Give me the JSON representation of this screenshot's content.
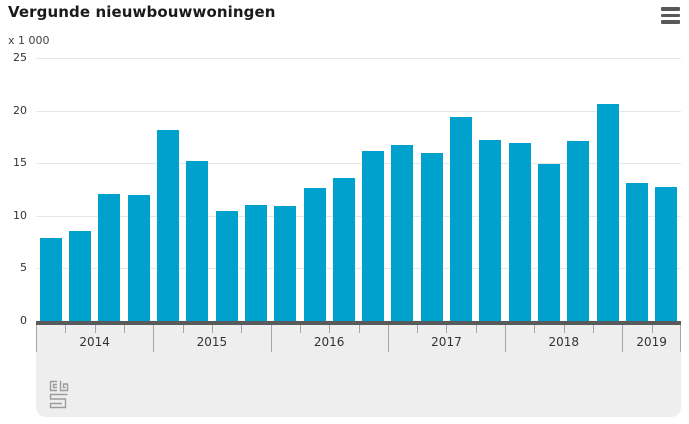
{
  "header": {
    "title": "Vergunde nieuwbouwwoningen",
    "menu_icon": "hamburger-menu"
  },
  "axis": {
    "unit_label": "x 1 000"
  },
  "chart_data": {
    "type": "bar",
    "title": "Vergunde nieuwbouwwoningen",
    "ylabel": "x 1 000",
    "xlabel": "",
    "ylim": [
      0,
      25
    ],
    "yticks": [
      0,
      5,
      10,
      15,
      20,
      25
    ],
    "grid": true,
    "legend": false,
    "bar_color": "#00a1cd",
    "years": [
      "2014",
      "2015",
      "2016",
      "2017",
      "2018",
      "2019"
    ],
    "quarters_per_year": [
      4,
      4,
      4,
      4,
      4,
      2
    ],
    "categories": [
      "2014 Q1",
      "2014 Q2",
      "2014 Q3",
      "2014 Q4",
      "2015 Q1",
      "2015 Q2",
      "2015 Q3",
      "2015 Q4",
      "2016 Q1",
      "2016 Q2",
      "2016 Q3",
      "2016 Q4",
      "2017 Q1",
      "2017 Q2",
      "2017 Q3",
      "2017 Q4",
      "2018 Q1",
      "2018 Q2",
      "2018 Q3",
      "2018 Q4",
      "2019 Q1",
      "2019 Q2"
    ],
    "values": [
      7.9,
      8.6,
      12.1,
      12.0,
      18.2,
      15.2,
      10.5,
      11.0,
      10.9,
      12.6,
      13.6,
      16.2,
      16.7,
      16.0,
      19.4,
      17.2,
      16.9,
      14.9,
      17.1,
      20.6,
      13.1,
      12.7
    ]
  },
  "branding": {
    "logo": "cbs-logo"
  }
}
